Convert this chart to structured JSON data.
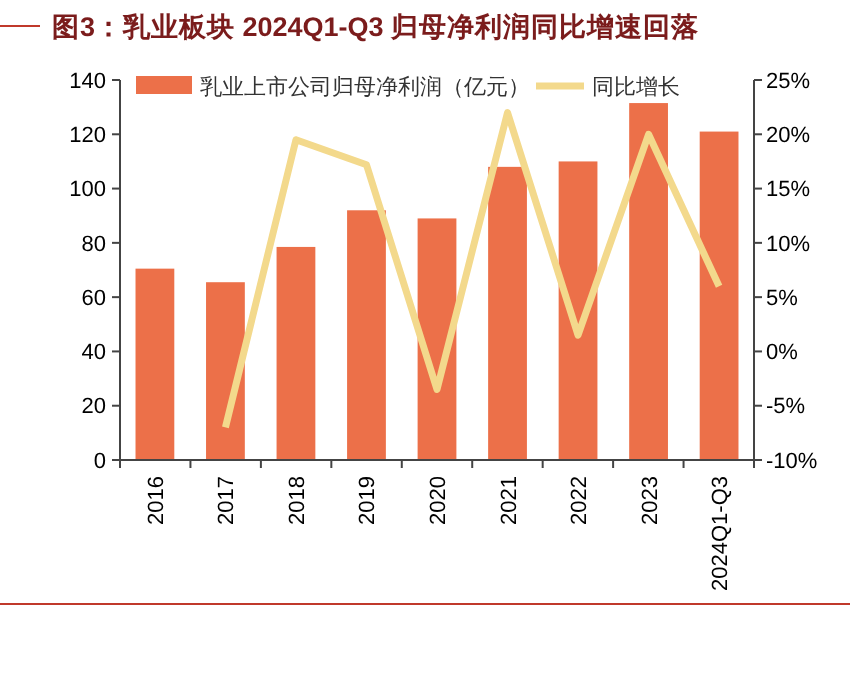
{
  "chart_data": {
    "type": "bar",
    "title": "图3：乳业板块 2024Q1-Q3 归母净利润同比增速回落",
    "categories": [
      "2016",
      "2017",
      "2018",
      "2019",
      "2020",
      "2021",
      "2022",
      "2023",
      "2024Q1-Q3"
    ],
    "series": [
      {
        "name": "乳业上市公司归母净利润（亿元）",
        "color": "#ec7049",
        "values": [
          70.5,
          65.5,
          78.5,
          92,
          89,
          108,
          110,
          131.5,
          121
        ]
      },
      {
        "name": "同比增长",
        "type": "line",
        "axis": "y2",
        "color": "#f3d98c",
        "values": [
          null,
          -7,
          19.5,
          17.2,
          -3.5,
          22,
          1.5,
          20,
          6
        ]
      }
    ],
    "ylim": [
      0,
      140
    ],
    "yticks": [
      0,
      20,
      40,
      60,
      80,
      100,
      120,
      140
    ],
    "y2lim": [
      -10,
      25
    ],
    "y2ticks": [
      {
        "value": -10,
        "label": "-10%"
      },
      {
        "value": -5,
        "label": "-5%"
      },
      {
        "value": 0,
        "label": "0%"
      },
      {
        "value": 5,
        "label": "5%"
      },
      {
        "value": 10,
        "label": "10%"
      },
      {
        "value": 15,
        "label": "15%"
      },
      {
        "value": 20,
        "label": "20%"
      },
      {
        "value": 25,
        "label": "25%"
      }
    ],
    "legend": "top",
    "grid": false,
    "marker": "none"
  }
}
